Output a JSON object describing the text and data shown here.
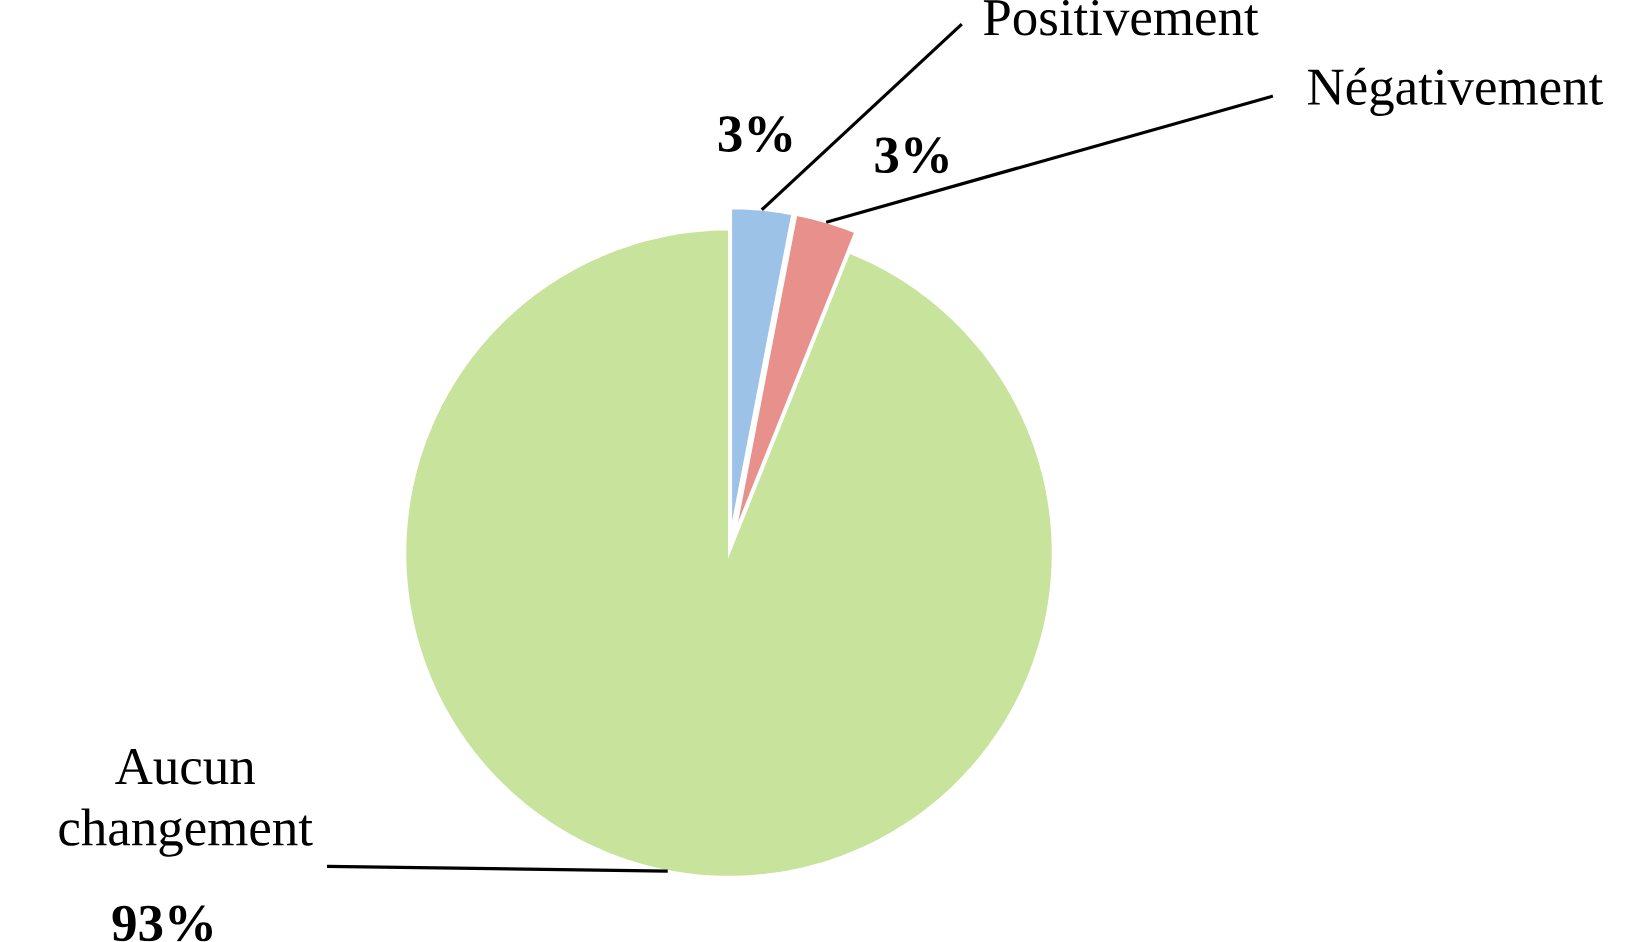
{
  "chart_data": {
    "type": "pie",
    "categories": [
      "Positivement",
      "Négativement",
      "Aucun changement"
    ],
    "values": [
      3,
      3,
      93
    ],
    "colors": [
      "#9cc2e8",
      "#e8908c",
      "#c8e49c"
    ],
    "value_labels": [
      "3%",
      "3%",
      "93%"
    ],
    "legend": false
  }
}
